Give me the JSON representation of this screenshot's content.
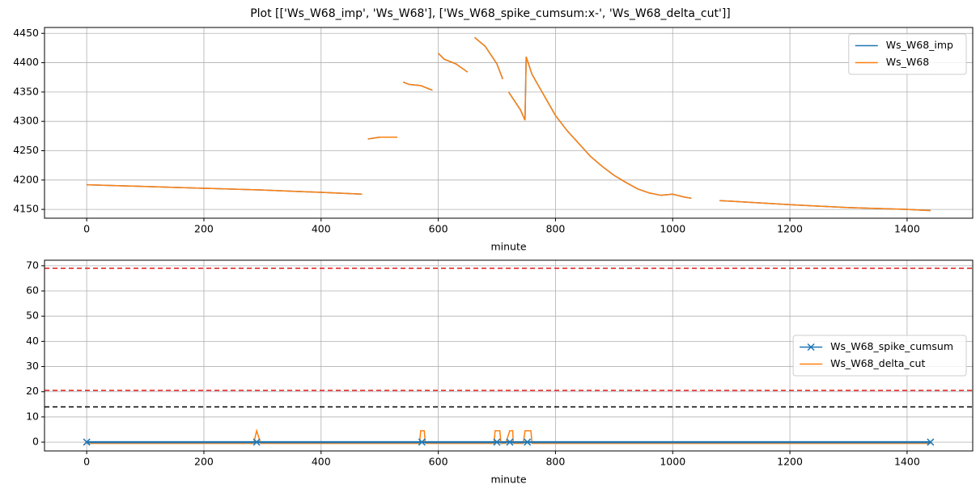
{
  "title": "Plot [['Ws_W68_imp', 'Ws_W68'], ['Ws_W68_spike_cumsum:x-', 'Ws_W68_delta_cut']]",
  "chart_data": [
    {
      "type": "line",
      "xlabel": "minute",
      "grid": true,
      "legend": "upper right",
      "xlim": [
        -72,
        1512
      ],
      "xticks": [
        0,
        200,
        400,
        600,
        800,
        1000,
        1200,
        1400
      ],
      "ylim": [
        4135,
        4460
      ],
      "yticks": [
        4150,
        4200,
        4250,
        4300,
        4350,
        4400,
        4450
      ],
      "series": [
        {
          "name": "Ws_W68_imp",
          "color": "#1f77b4",
          "x": [
            0,
            100,
            200,
            300,
            400,
            470,
            475,
            480,
            500,
            530,
            535,
            540,
            550,
            570,
            590,
            595,
            600,
            610,
            630,
            650,
            655,
            662,
            680,
            700,
            710,
            715,
            720,
            740,
            748,
            750,
            760,
            780,
            800,
            820,
            840,
            860,
            880,
            900,
            920,
            940,
            960,
            980,
            1000,
            1020,
            1032,
            1050,
            1080,
            1100,
            1200,
            1300,
            1400,
            1440
          ],
          "values": [
            4192,
            4189,
            4186,
            4183,
            4179,
            4176,
            null,
            4270,
            4273,
            4273,
            null,
            4367,
            4363,
            4361,
            4353,
            null,
            4416,
            4406,
            4398,
            4384,
            null,
            4443,
            4428,
            4398,
            4372,
            null,
            4350,
            4320,
            4302,
            4410,
            4380,
            4345,
            4310,
            4284,
            4262,
            4240,
            4223,
            4208,
            4196,
            4185,
            4178,
            4174,
            4176,
            4171,
            4169,
            null,
            4165,
            4164,
            4158,
            4153,
            4150,
            4148
          ]
        },
        {
          "name": "Ws_W68",
          "color": "#ff7f0e",
          "x": [
            0,
            100,
            200,
            300,
            400,
            470,
            475,
            480,
            500,
            530,
            535,
            540,
            550,
            570,
            590,
            595,
            600,
            610,
            630,
            650,
            655,
            662,
            680,
            700,
            710,
            715,
            720,
            740,
            748,
            750,
            760,
            780,
            800,
            820,
            840,
            860,
            880,
            900,
            920,
            940,
            960,
            980,
            1000,
            1020,
            1032,
            1050,
            1080,
            1100,
            1200,
            1300,
            1400,
            1440
          ],
          "values": [
            4192,
            4189,
            4186,
            4183,
            4179,
            4176,
            null,
            4270,
            4273,
            4273,
            null,
            4367,
            4363,
            4361,
            4353,
            null,
            4416,
            4406,
            4398,
            4384,
            null,
            4443,
            4428,
            4398,
            4372,
            null,
            4350,
            4320,
            4302,
            4410,
            4380,
            4345,
            4310,
            4284,
            4262,
            4240,
            4223,
            4208,
            4196,
            4185,
            4178,
            4174,
            4176,
            4171,
            4169,
            null,
            4165,
            4164,
            4158,
            4153,
            4150,
            4148
          ]
        }
      ]
    },
    {
      "type": "line",
      "xlabel": "minute",
      "grid": true,
      "legend": "center right",
      "xlim": [
        -72,
        1512
      ],
      "xticks": [
        0,
        200,
        400,
        600,
        800,
        1000,
        1200,
        1400
      ],
      "ylim": [
        -3.5,
        72.2
      ],
      "yticks": [
        0,
        10,
        20,
        30,
        40,
        50,
        60,
        70
      ],
      "hlines": [
        {
          "value": 69,
          "color": "#e41a1c"
        },
        {
          "value": 20.5,
          "color": "#e41a1c"
        },
        {
          "value": 14,
          "color": "#000000"
        }
      ],
      "series": [
        {
          "name": "Ws_W68_delta_cut",
          "color": "#ff7f0e",
          "x": [
            0,
            285,
            290,
            297,
            568,
            570,
            576,
            578,
            695,
            697,
            705,
            707,
            715,
            722,
            727,
            728,
            745,
            748,
            758,
            760,
            1440
          ],
          "values": [
            -0.5,
            -0.5,
            4.5,
            -0.5,
            -0.5,
            4.5,
            4.5,
            -0.5,
            -0.5,
            4.5,
            4.5,
            -0.5,
            -0.5,
            4.5,
            4.5,
            -0.5,
            -0.5,
            4.5,
            4.5,
            -0.5,
            -0.5
          ]
        },
        {
          "name": "Ws_W68_spike_cumsum",
          "color": "#1f77b4",
          "marker": "x",
          "x": [
            0,
            290,
            572,
            700,
            722,
            752,
            1440
          ],
          "values": [
            0,
            0,
            0,
            0,
            0,
            0,
            0
          ]
        }
      ]
    }
  ]
}
